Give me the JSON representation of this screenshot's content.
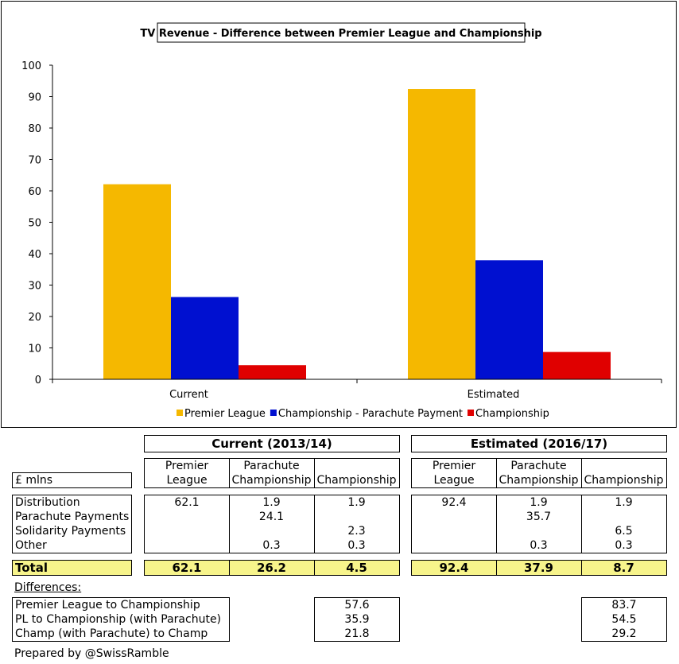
{
  "chart_data": {
    "type": "bar",
    "title": "TV Revenue - Difference between Premier League and Championship",
    "categories": [
      "Current",
      "Estimated"
    ],
    "series": [
      {
        "name": "Premier League",
        "values": [
          62.1,
          92.4
        ],
        "color": "#f5b800"
      },
      {
        "name": "Championship - Parachute Payment",
        "values": [
          26.2,
          37.9
        ],
        "color": "#0010d0"
      },
      {
        "name": "Championship",
        "values": [
          4.5,
          8.7
        ],
        "color": "#e00000"
      }
    ],
    "ylim": [
      0,
      100
    ],
    "yticks": [
      0,
      10,
      20,
      30,
      40,
      50,
      60,
      70,
      80,
      90,
      100
    ],
    "xlabel": "",
    "ylabel": "",
    "legend": "bottom",
    "grid": false
  },
  "table": {
    "unit_label": "£ mlns",
    "period_current": "Current (2013/14)",
    "period_estimated": "Estimated (2016/17)",
    "col_headers": [
      "Premier\nLeague",
      "Parachute\nChampionship",
      "Championship"
    ],
    "rows": [
      {
        "label": "Distribution",
        "current": [
          "62.1",
          "1.9",
          "1.9"
        ],
        "estimated": [
          "92.4",
          "1.9",
          "1.9"
        ]
      },
      {
        "label": "Parachute Payments",
        "current": [
          "",
          "24.1",
          ""
        ],
        "estimated": [
          "",
          "35.7",
          ""
        ]
      },
      {
        "label": "Solidarity Payments",
        "current": [
          "",
          "",
          "2.3"
        ],
        "estimated": [
          "",
          "",
          "6.5"
        ]
      },
      {
        "label": "Other",
        "current": [
          "",
          "0.3",
          "0.3"
        ],
        "estimated": [
          "",
          "0.3",
          "0.3"
        ]
      }
    ],
    "total_label": "Total",
    "total_current": [
      "62.1",
      "26.2",
      "4.5"
    ],
    "total_estimated": [
      "92.4",
      "37.9",
      "8.7"
    ],
    "differences_label": "Differences:",
    "differences": [
      {
        "label": "Premier League to Championship",
        "current": "57.6",
        "estimated": "83.7"
      },
      {
        "label": "PL to Championship (with Parachute)",
        "current": "35.9",
        "estimated": "54.5"
      },
      {
        "label": "Champ (with Parachute) to Champ",
        "current": "21.8",
        "estimated": "29.2"
      }
    ]
  },
  "footer": "Prepared by @SwissRamble"
}
